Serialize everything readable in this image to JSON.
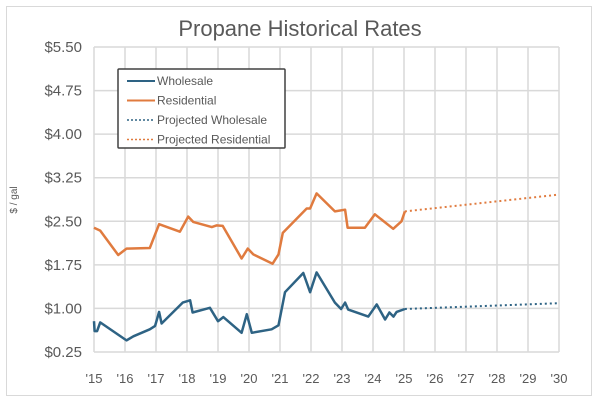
{
  "chart_data": {
    "type": "line",
    "title": "Propane Historical Rates",
    "xlabel": "",
    "ylabel": "$ / gal",
    "xlim": [
      2015,
      2030
    ],
    "ylim": [
      0.25,
      5.5
    ],
    "grid": true,
    "legend_position": "top-left",
    "x_tick_labels": [
      "'15",
      "'16",
      "'17",
      "'18",
      "'19",
      "'20",
      "'21",
      "'22",
      "'23",
      "'24",
      "'25",
      "'26",
      "'27",
      "'28",
      "'29",
      "'30"
    ],
    "y_tick_labels": [
      "$5.50",
      "$4.75",
      "$4.00",
      "$3.25",
      "$2.50",
      "$1.75",
      "$1.00",
      "$0.25"
    ],
    "y_ticks": [
      5.5,
      4.75,
      4.0,
      3.25,
      2.5,
      1.75,
      1.0,
      0.25
    ],
    "series": [
      {
        "name": "Wholesale",
        "color": "#2e6384",
        "style": "solid",
        "x": [
          2015.0,
          2015.02,
          2015.1,
          2015.2,
          2016.05,
          2016.27,
          2016.8,
          2016.97,
          2017.1,
          2017.18,
          2017.86,
          2018.1,
          2018.18,
          2018.74,
          2019.0,
          2019.17,
          2019.76,
          2019.93,
          2020.09,
          2020.73,
          2020.95,
          2021.16,
          2021.75,
          2021.97,
          2022.18,
          2022.77,
          2022.97,
          2023.1,
          2023.2,
          2023.85,
          2024.12,
          2024.39,
          2024.53,
          2024.66,
          2024.76,
          2025.03
        ],
        "y": [
          0.78,
          0.61,
          0.61,
          0.76,
          0.45,
          0.52,
          0.64,
          0.7,
          0.94,
          0.74,
          1.1,
          1.14,
          0.93,
          1.01,
          0.78,
          0.85,
          0.58,
          0.9,
          0.58,
          0.64,
          0.71,
          1.28,
          1.61,
          1.28,
          1.62,
          1.1,
          0.99,
          1.1,
          0.98,
          0.86,
          1.07,
          0.81,
          0.93,
          0.86,
          0.94,
          0.99
        ]
      },
      {
        "name": "Residential",
        "color": "#e07b3f",
        "style": "solid",
        "x": [
          2015.0,
          2015.2,
          2015.78,
          2016.05,
          2016.8,
          2017.1,
          2017.77,
          2018.04,
          2018.2,
          2018.8,
          2018.95,
          2019.15,
          2019.76,
          2019.96,
          2020.14,
          2020.76,
          2020.95,
          2021.09,
          2021.86,
          2021.97,
          2022.18,
          2022.77,
          2023.1,
          2023.18,
          2023.74,
          2024.06,
          2024.65,
          2024.92,
          2025.03
        ],
        "y": [
          2.39,
          2.34,
          1.92,
          2.03,
          2.04,
          2.45,
          2.32,
          2.58,
          2.49,
          2.4,
          2.43,
          2.42,
          1.86,
          2.03,
          1.93,
          1.77,
          1.93,
          2.3,
          2.72,
          2.72,
          2.98,
          2.67,
          2.7,
          2.39,
          2.39,
          2.62,
          2.37,
          2.5,
          2.67
        ]
      },
      {
        "name": "Projected Wholesale",
        "color": "#2e6384",
        "style": "dotted",
        "x": [
          2025.03,
          2030
        ],
        "y": [
          0.99,
          1.09
        ]
      },
      {
        "name": "Projected Residential",
        "color": "#e07b3f",
        "style": "dotted",
        "x": [
          2025.03,
          2030
        ],
        "y": [
          2.67,
          2.96
        ]
      }
    ]
  }
}
